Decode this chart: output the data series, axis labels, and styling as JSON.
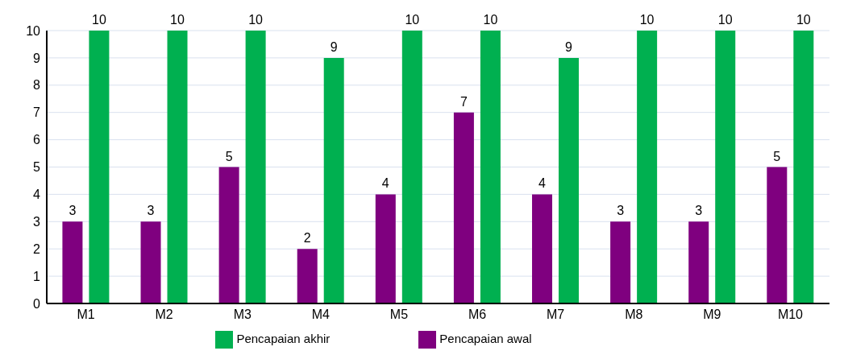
{
  "chart_data": {
    "type": "bar",
    "categories": [
      "M1",
      "M2",
      "M3",
      "M4",
      "M5",
      "M6",
      "M7",
      "M8",
      "M9",
      "M10"
    ],
    "series": [
      {
        "name": "Pencapaian awal",
        "color": "#7f007f",
        "values": [
          3,
          3,
          5,
          2,
          4,
          7,
          4,
          3,
          3,
          5
        ]
      },
      {
        "name": "Pencapaian akhir",
        "color": "#00b050",
        "values": [
          10,
          10,
          10,
          9,
          10,
          10,
          9,
          10,
          10,
          10
        ]
      }
    ],
    "ylim": [
      0,
      10
    ],
    "yticks": [
      0,
      1,
      2,
      3,
      4,
      5,
      6,
      7,
      8,
      9,
      10
    ],
    "grid": "y",
    "legend": "bottom",
    "data_labels": true
  }
}
